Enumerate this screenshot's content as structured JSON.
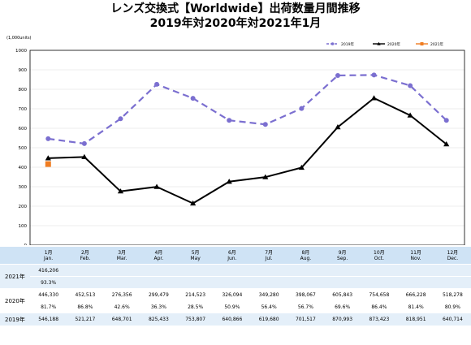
{
  "title_line1": "レンズ交換式【Worldwide】出荷数量月間推移",
  "title_line2": "2019年対2020年対2021年1月",
  "chart_data": {
    "type": "line",
    "unit_label": "(1,000units)",
    "ylim": [
      0,
      1000
    ],
    "yticks": [
      0,
      100,
      200,
      300,
      400,
      500,
      600,
      700,
      800,
      900,
      1000
    ],
    "categories": [
      "1月",
      "2月",
      "3月",
      "4月",
      "5月",
      "6月",
      "7月",
      "8月",
      "9月",
      "10月",
      "11月",
      "12月"
    ],
    "legend_position": "top-right",
    "series": [
      {
        "name": "2019年",
        "color": "#7b6fd0",
        "style": "dashed",
        "marker": "circle",
        "values": [
          546.188,
          521.217,
          648.701,
          825.433,
          753.807,
          640.866,
          619.68,
          701.517,
          870.993,
          873.423,
          818.951,
          640.714
        ]
      },
      {
        "name": "2020年",
        "color": "#000000",
        "style": "solid",
        "marker": "triangle",
        "values": [
          446.33,
          452.513,
          276.356,
          299.479,
          214.523,
          326.094,
          349.28,
          398.067,
          605.843,
          754.658,
          666.228,
          518.278
        ]
      },
      {
        "name": "2021年",
        "color": "#f07d22",
        "style": "solid",
        "marker": "square",
        "values": [
          416.206,
          null,
          null,
          null,
          null,
          null,
          null,
          null,
          null,
          null,
          null,
          null
        ]
      }
    ]
  },
  "table": {
    "months": [
      {
        "jp": "1月",
        "en": "Jan."
      },
      {
        "jp": "2月",
        "en": "Feb."
      },
      {
        "jp": "3月",
        "en": "Mar."
      },
      {
        "jp": "4月",
        "en": "Apr."
      },
      {
        "jp": "5月",
        "en": "May"
      },
      {
        "jp": "6月",
        "en": "Jun."
      },
      {
        "jp": "7月",
        "en": "Jul."
      },
      {
        "jp": "8月",
        "en": "Aug."
      },
      {
        "jp": "9月",
        "en": "Sep."
      },
      {
        "jp": "10月",
        "en": "Oct."
      },
      {
        "jp": "11月",
        "en": "Nov."
      },
      {
        "jp": "12月",
        "en": "Dec."
      }
    ],
    "rows": [
      {
        "label": "2021年",
        "values": [
          "416,206",
          "",
          "",
          "",
          "",
          "",
          "",
          "",
          "",
          "",
          "",
          ""
        ],
        "ratios": [
          "93.3%",
          "",
          "",
          "",
          "",
          "",
          "",
          "",
          "",
          "",
          "",
          ""
        ]
      },
      {
        "label": "2020年",
        "values": [
          "446,330",
          "452,513",
          "276,356",
          "299,479",
          "214,523",
          "326,094",
          "349,280",
          "398,067",
          "605,843",
          "754,658",
          "666,228",
          "518,278"
        ],
        "ratios": [
          "81.7%",
          "86.8%",
          "42.6%",
          "36.3%",
          "28.5%",
          "50.9%",
          "56.4%",
          "56.7%",
          "69.6%",
          "86.4%",
          "81.4%",
          "80.9%"
        ]
      },
      {
        "label": "2019年",
        "values": [
          "546,188",
          "521,217",
          "648,701",
          "825,433",
          "753,807",
          "640,866",
          "619,680",
          "701,517",
          "870,993",
          "873,423",
          "818,951",
          "640,714"
        ]
      }
    ]
  }
}
